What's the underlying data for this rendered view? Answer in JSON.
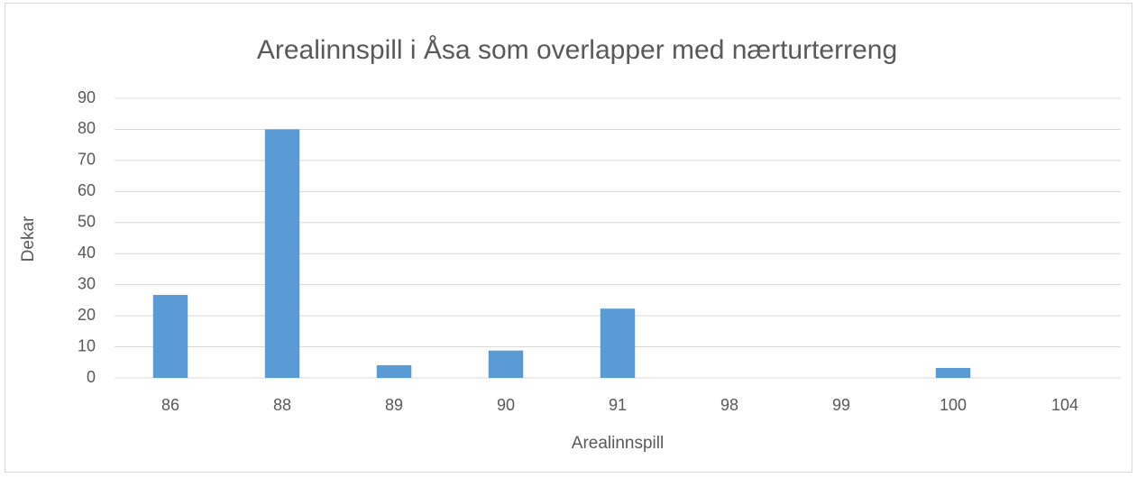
{
  "chart_data": {
    "type": "bar",
    "title": "Arealinnspill i Åsa som overlapper med nærturterreng",
    "x_label": "Arealinnspill",
    "y_label": "Dekar",
    "categories": [
      "86",
      "88",
      "89",
      "90",
      "91",
      "98",
      "99",
      "100",
      "104"
    ],
    "values": [
      26.7,
      80,
      4.1,
      8.8,
      22.3,
      0,
      0,
      3.2,
      0
    ],
    "color": "#5b9bd5",
    "ylim": [
      0,
      90
    ],
    "yticks": [
      0,
      10,
      20,
      30,
      40,
      50,
      60,
      70,
      80,
      90
    ],
    "grid": true
  }
}
